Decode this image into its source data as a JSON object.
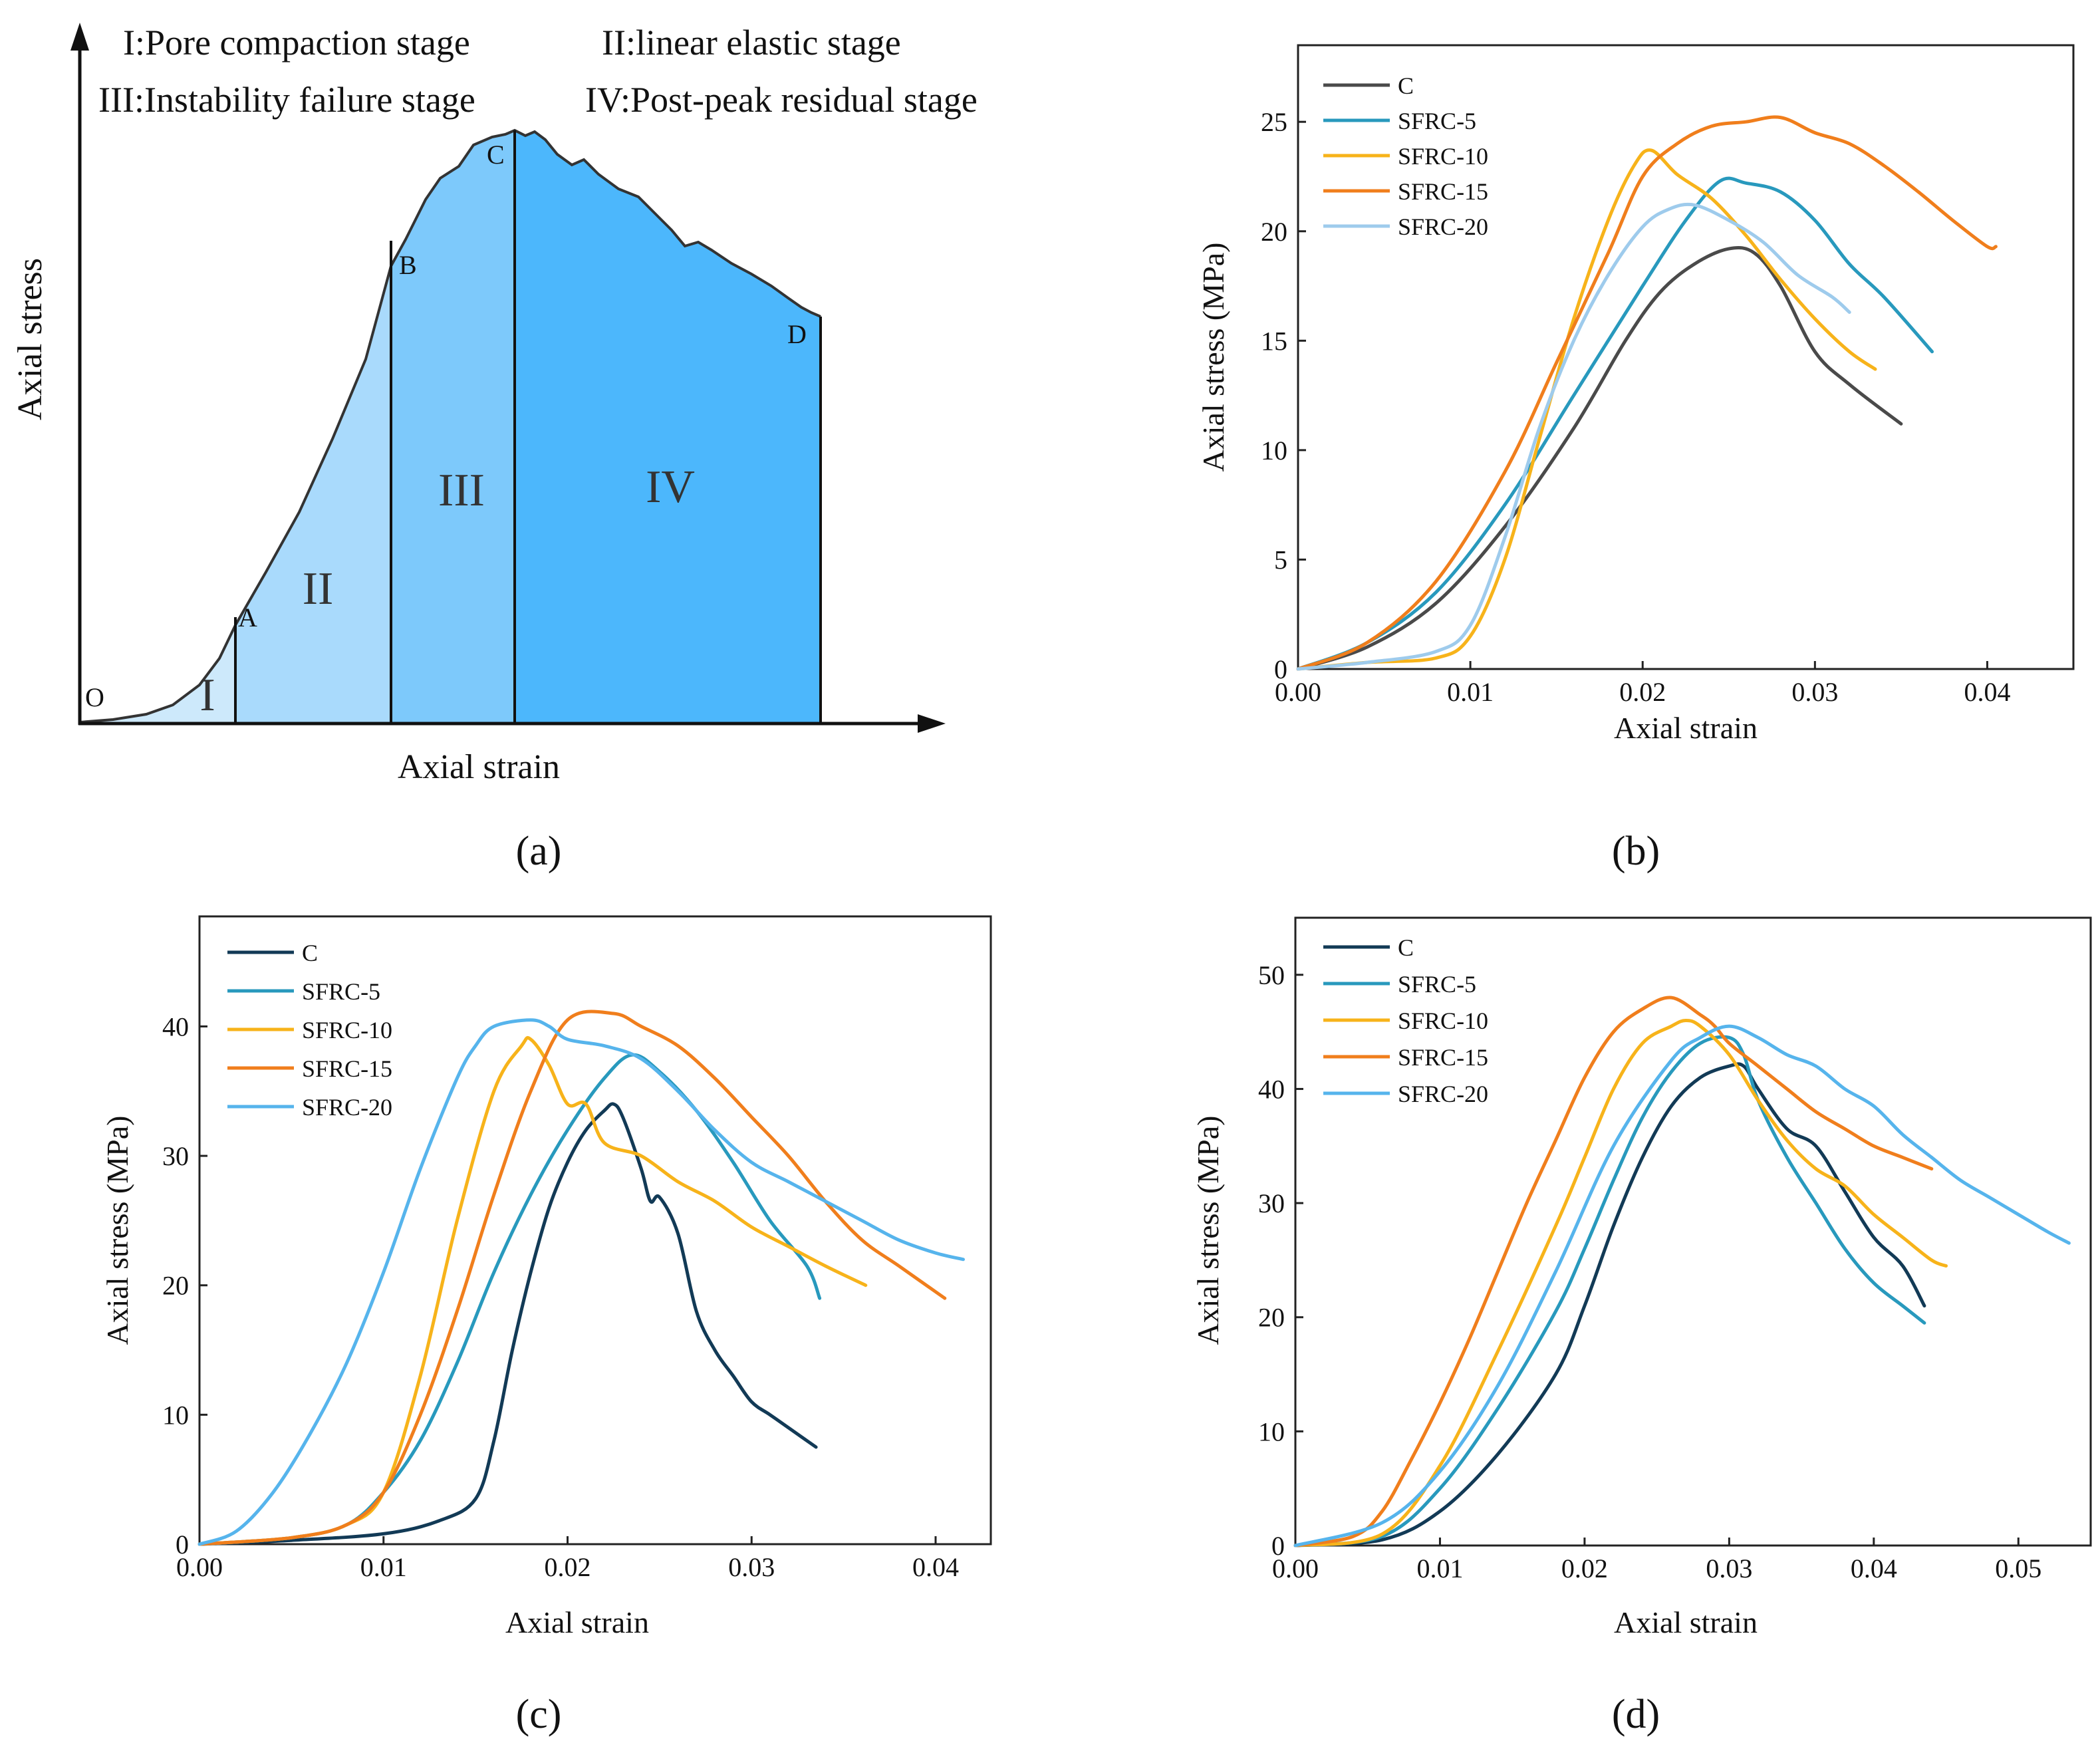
{
  "figure": {
    "panel_labels": [
      "(a)",
      "(b)",
      "(c)",
      "(d)"
    ]
  },
  "panel_a": {
    "stage_titles": [
      "I:Pore compaction stage",
      "II:linear elastic stage",
      "III:Instability failure stage",
      "IV:Post-peak residual stage"
    ],
    "xlabel": "Axial strain",
    "ylabel": "Axial stress",
    "points": [
      "O",
      "A",
      "B",
      "C",
      "D"
    ],
    "region_labels": [
      "I",
      "II",
      "III",
      "IV"
    ],
    "region_colors": [
      "#cde9fb",
      "#a9dafc",
      "#7dc9fb",
      "#4cb7fc"
    ]
  },
  "chart_data": [
    {
      "panel": "(b)",
      "type": "line",
      "xlabel": "Axial strain",
      "ylabel": "Axial stress (MPa)",
      "xlim": [
        0,
        0.045
      ],
      "ylim": [
        0,
        28.5
      ],
      "xticks": [
        "0.00",
        "0.01",
        "0.02",
        "0.03",
        "0.04"
      ],
      "yticks": [
        "0",
        "5",
        "10",
        "15",
        "20",
        "25"
      ],
      "legend_position": "top-left",
      "series": [
        {
          "name": "C",
          "color": "#4a4a4a",
          "x": [
            0,
            0.004,
            0.008,
            0.012,
            0.016,
            0.019,
            0.021,
            0.023,
            0.025,
            0.0265,
            0.028,
            0.03,
            0.032,
            0.035
          ],
          "y": [
            0,
            1,
            3,
            6.5,
            11,
            15,
            17.2,
            18.5,
            19.2,
            19,
            17.5,
            14.5,
            13,
            11.2
          ]
        },
        {
          "name": "SFRC-5",
          "color": "#2899bd",
          "x": [
            0,
            0.004,
            0.008,
            0.012,
            0.016,
            0.02,
            0.0225,
            0.0245,
            0.026,
            0.028,
            0.03,
            0.032,
            0.034,
            0.0368
          ],
          "y": [
            0,
            1.2,
            3.5,
            7.5,
            12.5,
            17.5,
            20.5,
            22.3,
            22.2,
            21.8,
            20.5,
            18.5,
            17,
            14.5
          ]
        },
        {
          "name": "SFRC-10",
          "color": "#f7b31a",
          "x": [
            0,
            0.004,
            0.008,
            0.01,
            0.012,
            0.014,
            0.016,
            0.018,
            0.0195,
            0.0205,
            0.022,
            0.024,
            0.026,
            0.028,
            0.03,
            0.032,
            0.0335
          ],
          "y": [
            0,
            0.3,
            0.5,
            1.5,
            5,
            10.5,
            16,
            20.5,
            23,
            23.7,
            22.6,
            21.5,
            19.8,
            17.8,
            16,
            14.5,
            13.7
          ]
        },
        {
          "name": "SFRC-15",
          "color": "#f07e1c",
          "x": [
            0,
            0.004,
            0.008,
            0.012,
            0.015,
            0.018,
            0.02,
            0.022,
            0.024,
            0.026,
            0.028,
            0.03,
            0.032,
            0.034,
            0.036,
            0.038,
            0.04,
            0.0405
          ],
          "y": [
            0,
            1.2,
            4,
            9,
            14,
            19,
            22.5,
            24,
            24.8,
            25,
            25.2,
            24.5,
            24,
            23,
            21.8,
            20.5,
            19.3,
            19.3
          ]
        },
        {
          "name": "SFRC-20",
          "color": "#9ecbec",
          "x": [
            0,
            0.004,
            0.008,
            0.01,
            0.012,
            0.014,
            0.016,
            0.018,
            0.02,
            0.0215,
            0.023,
            0.025,
            0.027,
            0.029,
            0.031,
            0.032
          ],
          "y": [
            0,
            0.3,
            0.8,
            2,
            6,
            11,
            15,
            18,
            20.2,
            21,
            21.2,
            20.5,
            19.5,
            18,
            17,
            16.3
          ]
        }
      ]
    },
    {
      "panel": "(c)",
      "type": "line",
      "xlabel": "Axial strain",
      "ylabel": "Axial stress (MPa)",
      "xlim": [
        0,
        0.043
      ],
      "ylim": [
        0,
        48.5
      ],
      "xticks": [
        "0.00",
        "0.01",
        "0.02",
        "0.03",
        "0.04"
      ],
      "yticks": [
        "0",
        "10",
        "20",
        "30",
        "40"
      ],
      "legend_position": "top-left",
      "series": [
        {
          "name": "C",
          "color": "#123a56",
          "x": [
            0,
            0.005,
            0.01,
            0.013,
            0.015,
            0.016,
            0.017,
            0.018,
            0.019,
            0.02,
            0.021,
            0.022,
            0.0225,
            0.023,
            0.024,
            0.0245,
            0.025,
            0.026,
            0.027,
            0.028,
            0.029,
            0.03,
            0.031,
            0.032,
            0.0335
          ],
          "y": [
            0,
            0.3,
            0.8,
            1.8,
            3.5,
            8,
            15,
            21,
            26,
            29.5,
            32,
            33.5,
            34,
            33,
            29,
            26.5,
            26.8,
            24,
            18,
            15,
            13,
            11,
            10,
            9,
            7.5
          ]
        },
        {
          "name": "SFRC-5",
          "color": "#2899bd",
          "x": [
            0,
            0.005,
            0.008,
            0.01,
            0.012,
            0.014,
            0.016,
            0.018,
            0.02,
            0.022,
            0.0235,
            0.025,
            0.027,
            0.029,
            0.031,
            0.033,
            0.0337
          ],
          "y": [
            0,
            0.5,
            1.5,
            4,
            8,
            14,
            21,
            27,
            32,
            36,
            37.8,
            36.5,
            33.5,
            29.5,
            25,
            21.5,
            19
          ]
        },
        {
          "name": "SFRC-10",
          "color": "#f7b31a",
          "x": [
            0,
            0.005,
            0.008,
            0.01,
            0.012,
            0.014,
            0.016,
            0.0175,
            0.018,
            0.019,
            0.02,
            0.021,
            0.022,
            0.024,
            0.026,
            0.028,
            0.03,
            0.032,
            0.034,
            0.0362
          ],
          "y": [
            0,
            0.5,
            1.5,
            4,
            13,
            25,
            35,
            38.5,
            39,
            37,
            34,
            34,
            31,
            30,
            28,
            26.5,
            24.5,
            23,
            21.5,
            20
          ]
        },
        {
          "name": "SFRC-15",
          "color": "#f07e1c",
          "x": [
            0,
            0.005,
            0.008,
            0.01,
            0.012,
            0.014,
            0.016,
            0.018,
            0.02,
            0.0225,
            0.024,
            0.026,
            0.028,
            0.03,
            0.032,
            0.034,
            0.036,
            0.038,
            0.04,
            0.0405
          ],
          "y": [
            0,
            0.5,
            1.5,
            4,
            10,
            18,
            27,
            35,
            40.5,
            41,
            40,
            38.5,
            36,
            33,
            30,
            26.5,
            23.5,
            21.5,
            19.5,
            19
          ]
        },
        {
          "name": "SFRC-20",
          "color": "#56b4ec",
          "x": [
            0,
            0.002,
            0.004,
            0.006,
            0.008,
            0.01,
            0.012,
            0.014,
            0.015,
            0.016,
            0.018,
            0.019,
            0.02,
            0.022,
            0.024,
            0.026,
            0.028,
            0.03,
            0.032,
            0.034,
            0.036,
            0.038,
            0.04,
            0.0415
          ],
          "y": [
            0,
            1,
            4,
            8.5,
            14,
            21,
            29,
            36,
            38.5,
            40,
            40.5,
            40,
            39,
            38.5,
            37.5,
            35,
            32,
            29.5,
            28,
            26.5,
            25,
            23.5,
            22.5,
            22
          ]
        }
      ]
    },
    {
      "panel": "(d)",
      "type": "line",
      "xlabel": "Axial strain",
      "ylabel": "Axial stress (MPa)",
      "xlim": [
        0,
        0.055
      ],
      "ylim": [
        0,
        55
      ],
      "xticks": [
        "0.00",
        "0.01",
        "0.02",
        "0.03",
        "0.04",
        "0.05"
      ],
      "yticks": [
        "0",
        "10",
        "20",
        "30",
        "40",
        "50"
      ],
      "legend_position": "top-left",
      "series": [
        {
          "name": "C",
          "color": "#123a56",
          "x": [
            0,
            0.006,
            0.01,
            0.014,
            0.018,
            0.02,
            0.022,
            0.024,
            0.026,
            0.028,
            0.03,
            0.031,
            0.032,
            0.034,
            0.036,
            0.038,
            0.04,
            0.042,
            0.0435
          ],
          "y": [
            0,
            0.5,
            3,
            8,
            15,
            21,
            28,
            34,
            38.5,
            41,
            42,
            42,
            40,
            36.5,
            35,
            31,
            27,
            24.5,
            21
          ]
        },
        {
          "name": "SFRC-5",
          "color": "#2899bd",
          "x": [
            0,
            0.006,
            0.01,
            0.014,
            0.018,
            0.02,
            0.022,
            0.024,
            0.026,
            0.028,
            0.03,
            0.031,
            0.032,
            0.034,
            0.036,
            0.038,
            0.04,
            0.042,
            0.0435
          ],
          "y": [
            0,
            0.8,
            5,
            12,
            20.5,
            26,
            32,
            37.5,
            41.5,
            44,
            44.5,
            43,
            39,
            34,
            30,
            26,
            23,
            21,
            19.5
          ]
        },
        {
          "name": "SFRC-10",
          "color": "#f7b31a",
          "x": [
            0,
            0.006,
            0.01,
            0.014,
            0.018,
            0.02,
            0.022,
            0.024,
            0.026,
            0.027,
            0.028,
            0.03,
            0.032,
            0.034,
            0.036,
            0.038,
            0.04,
            0.042,
            0.044,
            0.045
          ],
          "y": [
            0,
            1,
            7,
            17,
            28,
            34,
            40,
            44,
            45.5,
            46,
            45.5,
            43,
            39,
            35.5,
            33,
            31.5,
            29,
            27,
            25,
            24.5
          ]
        },
        {
          "name": "SFRC-15",
          "color": "#f07e1c",
          "x": [
            0,
            0.004,
            0.006,
            0.008,
            0.01,
            0.012,
            0.014,
            0.016,
            0.018,
            0.02,
            0.022,
            0.024,
            0.026,
            0.028,
            0.029,
            0.03,
            0.032,
            0.034,
            0.036,
            0.038,
            0.04,
            0.042,
            0.044
          ],
          "y": [
            0,
            0.8,
            3,
            7.5,
            12.5,
            18,
            24,
            30,
            35.5,
            41,
            45,
            47,
            48,
            46.5,
            45.5,
            44,
            42,
            40,
            38,
            36.5,
            35,
            34,
            33
          ]
        },
        {
          "name": "SFRC-20",
          "color": "#56b4ec",
          "x": [
            0,
            0.006,
            0.01,
            0.014,
            0.018,
            0.022,
            0.026,
            0.028,
            0.03,
            0.032,
            0.034,
            0.036,
            0.038,
            0.04,
            0.042,
            0.044,
            0.046,
            0.048,
            0.05,
            0.052,
            0.0535
          ],
          "y": [
            0,
            2,
            6.5,
            14,
            24,
            35,
            42.5,
            44.5,
            45.5,
            44.5,
            43,
            42,
            40,
            38.5,
            36,
            34,
            32,
            30.5,
            29,
            27.5,
            26.5
          ]
        }
      ]
    }
  ]
}
